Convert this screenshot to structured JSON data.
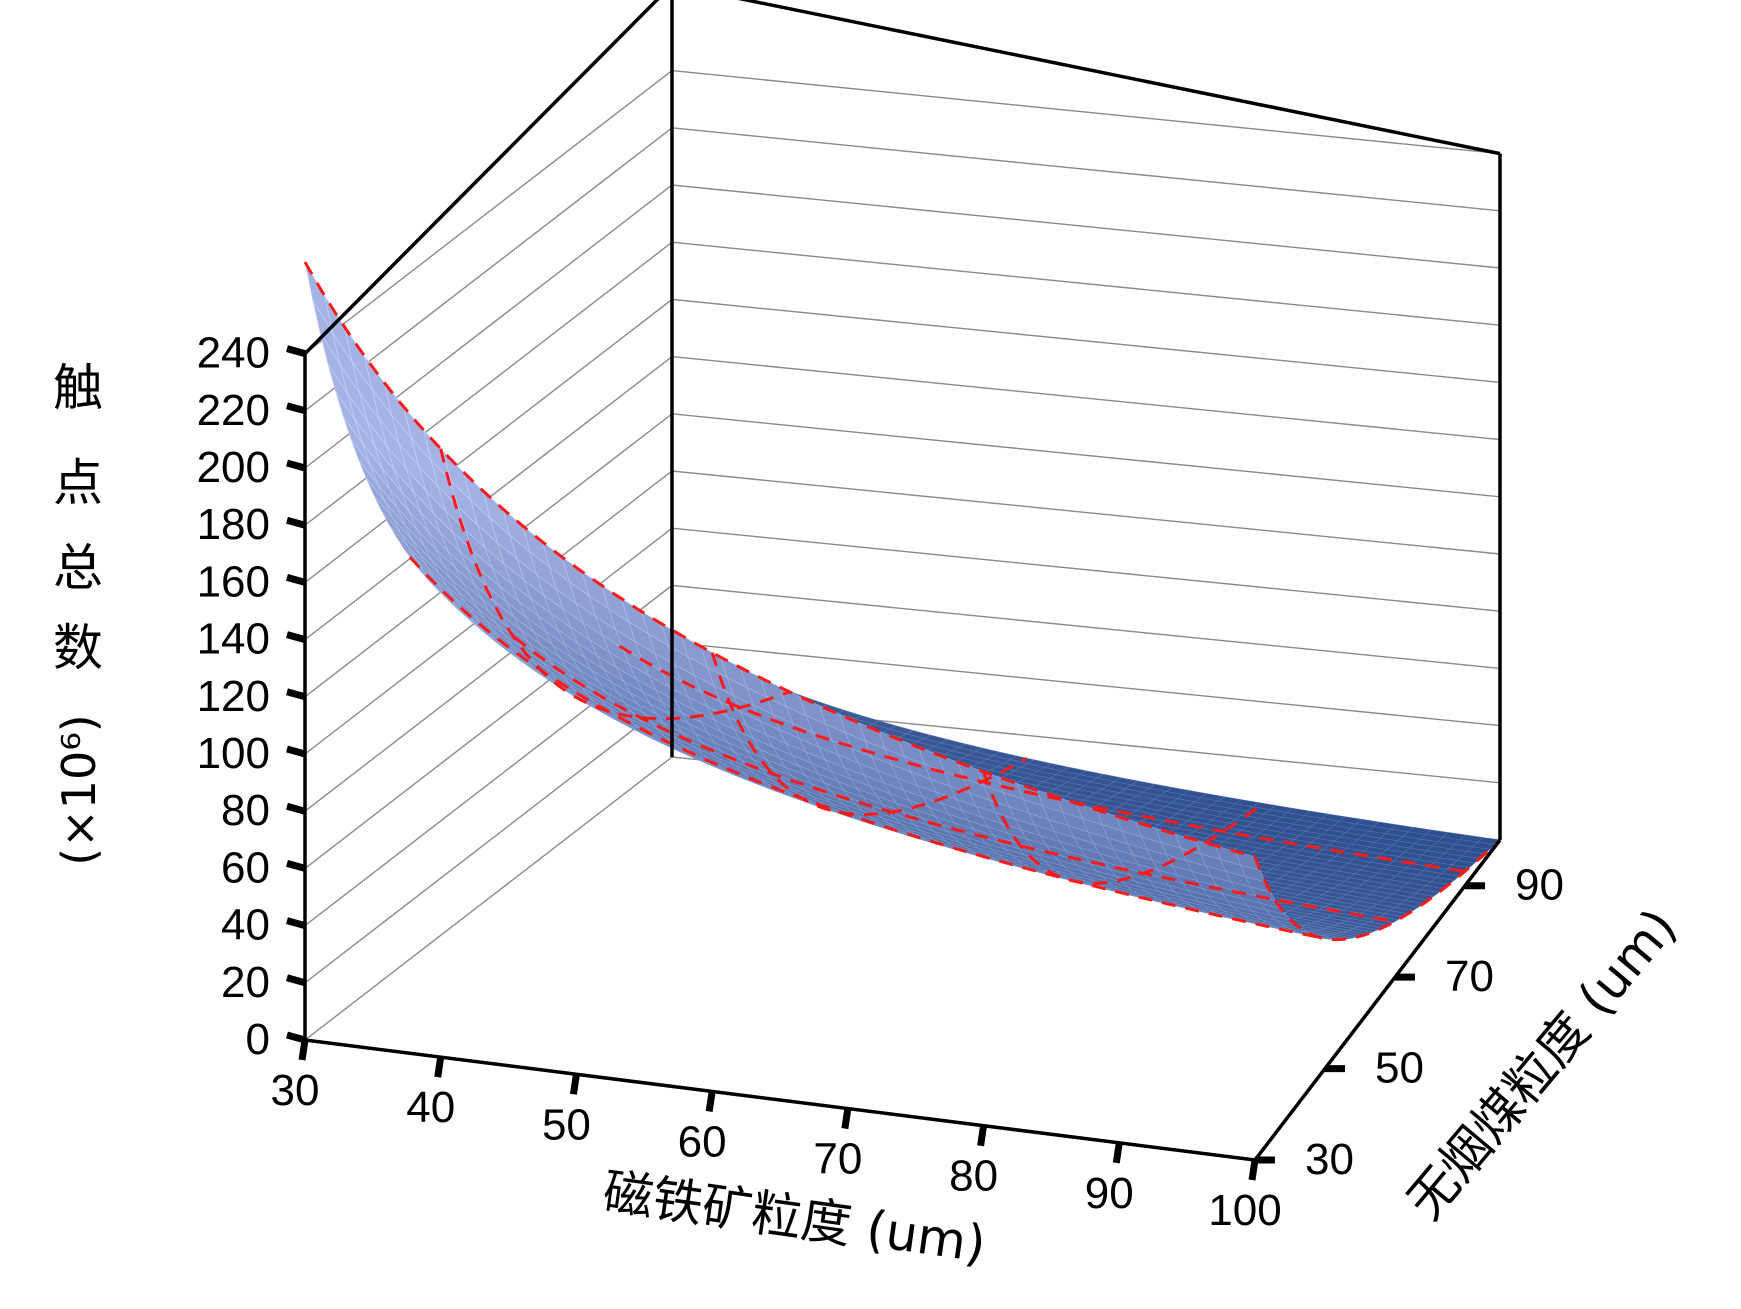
{
  "chart_data": {
    "type": "surface3d",
    "title": "",
    "zlabel_lines": [
      "触",
      "点",
      "总",
      "数"
    ],
    "zlabel_unit": "(×10⁶)",
    "xlabel": "磁铁矿粒度 (um)",
    "ylabel": "无烟煤粒度 (um)",
    "x_ticks": [
      "30",
      "40",
      "50",
      "60",
      "70",
      "80",
      "90",
      "100"
    ],
    "y_ticks": [
      "30",
      "50",
      "70",
      "90"
    ],
    "z_ticks": [
      "0",
      "20",
      "40",
      "60",
      "80",
      "100",
      "120",
      "140",
      "160",
      "180",
      "200",
      "220",
      "240"
    ],
    "xlim": [
      30,
      100
    ],
    "ylim": [
      30,
      100
    ],
    "zlim": [
      0,
      240
    ],
    "surface_corners": {
      "x30_y30": 272,
      "x30_y100": 42,
      "x100_y30": 106,
      "x100_y100": 0
    },
    "surface_color": "#4a6fb3",
    "contour_color": "#ff1a1a",
    "grid": true
  }
}
